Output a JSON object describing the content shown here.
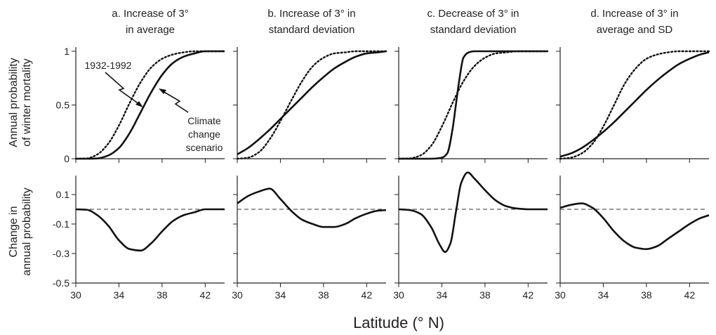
{
  "figure": {
    "xlabel": "Latitude (° N)",
    "top_row_ylabel_line1": "Annual probability",
    "top_row_ylabel_line2": "of winter mortality",
    "bottom_row_ylabel_line1": "Change in",
    "bottom_row_ylabel_line2": "annual probability"
  },
  "annotations": {
    "baseline_label": "1932-1992",
    "scenario_label_line1": "Climate",
    "scenario_label_line2": "change",
    "scenario_label_line3": "scenario"
  },
  "chart_data": [
    {
      "type": "line",
      "panel": "a-top",
      "title_line1": "a. Increase of 3°",
      "title_line2": "in average",
      "xlim": [
        30,
        43.8
      ],
      "ylim": [
        0,
        1
      ],
      "x_ticks": [
        30,
        34,
        38,
        42
      ],
      "y_ticks": [
        0,
        0.5,
        1
      ],
      "y_tick_labels": [
        "0",
        "0.5",
        "1"
      ],
      "series": [
        {
          "style": "dotted",
          "x": [
            30,
            31,
            32,
            33,
            34,
            35,
            36,
            37,
            38,
            39,
            40,
            41,
            42,
            43,
            43.8
          ],
          "y": [
            0,
            0.003,
            0.04,
            0.14,
            0.31,
            0.52,
            0.71,
            0.85,
            0.93,
            0.97,
            0.99,
            1,
            1,
            1,
            1
          ]
        },
        {
          "style": "solid",
          "x": [
            30,
            31,
            32,
            33,
            34,
            35,
            36,
            37,
            38,
            39,
            40,
            41,
            42,
            43,
            43.8
          ],
          "y": [
            0,
            0,
            0.003,
            0.03,
            0.1,
            0.24,
            0.43,
            0.62,
            0.78,
            0.89,
            0.95,
            0.98,
            1,
            1,
            1
          ]
        }
      ]
    },
    {
      "type": "line",
      "panel": "b-top",
      "title_line1": "b. Increase of 3° in",
      "title_line2": "standard deviation",
      "xlim": [
        30,
        43.8
      ],
      "ylim": [
        0,
        1
      ],
      "x_ticks": [
        30,
        34,
        38,
        42
      ],
      "y_ticks": [
        0,
        0.5,
        1
      ],
      "series": [
        {
          "style": "dotted",
          "x": [
            30,
            31,
            32,
            33,
            34,
            35,
            36,
            37,
            38,
            39,
            40,
            41,
            42,
            43,
            43.8
          ],
          "y": [
            0,
            0.01,
            0.06,
            0.18,
            0.35,
            0.54,
            0.72,
            0.86,
            0.94,
            0.98,
            0.99,
            1,
            1,
            1,
            1
          ]
        },
        {
          "style": "solid",
          "x": [
            30,
            31,
            32,
            33,
            34,
            35,
            36,
            37,
            38,
            39,
            40,
            41,
            42,
            43,
            43.8
          ],
          "y": [
            0.04,
            0.1,
            0.18,
            0.27,
            0.37,
            0.47,
            0.57,
            0.67,
            0.76,
            0.84,
            0.9,
            0.95,
            0.98,
            0.99,
            1
          ]
        }
      ]
    },
    {
      "type": "line",
      "panel": "c-top",
      "title_line1": "c. Decrease of 3° in",
      "title_line2": "standard deviation",
      "xlim": [
        30,
        43.8
      ],
      "ylim": [
        0,
        1
      ],
      "x_ticks": [
        30,
        34,
        38,
        42
      ],
      "y_ticks": [
        0,
        0.5,
        1
      ],
      "series": [
        {
          "style": "dotted",
          "x": [
            30,
            31,
            32,
            33,
            34,
            35,
            36,
            37,
            38,
            39,
            40,
            41,
            42,
            43,
            43.8
          ],
          "y": [
            0,
            0.003,
            0.03,
            0.12,
            0.3,
            0.52,
            0.72,
            0.86,
            0.94,
            0.98,
            0.99,
            1,
            1,
            1,
            1
          ]
        },
        {
          "style": "solid",
          "x": [
            30,
            33,
            34,
            34.5,
            35,
            35.3,
            35.6,
            36,
            36.5,
            37,
            38,
            40,
            42,
            43.8
          ],
          "y": [
            0,
            0,
            0.01,
            0.05,
            0.28,
            0.5,
            0.72,
            0.94,
            0.99,
            1,
            1,
            1,
            1,
            1
          ]
        }
      ]
    },
    {
      "type": "line",
      "panel": "d-top",
      "title_line1": "d. Increase of 3° in",
      "title_line2": "average and SD",
      "xlim": [
        30,
        43.8
      ],
      "ylim": [
        0,
        1
      ],
      "x_ticks": [
        30,
        34,
        38,
        42
      ],
      "y_ticks": [
        0,
        0.5,
        1
      ],
      "series": [
        {
          "style": "dotted",
          "x": [
            30,
            31,
            32,
            33,
            34,
            35,
            36,
            37,
            38,
            39,
            40,
            41,
            42,
            43,
            43.8
          ],
          "y": [
            0,
            0.01,
            0.05,
            0.14,
            0.3,
            0.5,
            0.7,
            0.84,
            0.93,
            0.97,
            0.99,
            1,
            1,
            1,
            1
          ]
        },
        {
          "style": "solid",
          "x": [
            30,
            31,
            32,
            33,
            34,
            35,
            36,
            37,
            38,
            39,
            40,
            41,
            42,
            43,
            43.8
          ],
          "y": [
            0.02,
            0.05,
            0.1,
            0.17,
            0.25,
            0.34,
            0.44,
            0.54,
            0.64,
            0.73,
            0.81,
            0.88,
            0.93,
            0.97,
            0.99
          ]
        }
      ]
    },
    {
      "type": "line",
      "panel": "a-bottom",
      "xlim": [
        30,
        43.8
      ],
      "ylim": [
        -0.5,
        0.2
      ],
      "x_ticks": [
        30,
        34,
        38,
        42
      ],
      "y_ticks": [
        0.1,
        -0.1,
        -0.3,
        -0.5
      ],
      "y_tick_labels": [
        "0.1",
        "-0.1",
        "-0.3",
        "-0.5"
      ],
      "series": [
        {
          "style": "solid",
          "x": [
            30,
            31,
            32,
            33,
            34,
            35,
            36,
            37,
            38,
            39,
            40,
            41,
            42,
            43,
            43.8
          ],
          "y": [
            0,
            -0.003,
            -0.04,
            -0.11,
            -0.21,
            -0.27,
            -0.28,
            -0.23,
            -0.15,
            -0.08,
            -0.04,
            -0.02,
            0,
            0,
            0
          ]
        }
      ]
    },
    {
      "type": "line",
      "panel": "b-bottom",
      "xlim": [
        30,
        43.8
      ],
      "ylim": [
        -0.5,
        0.2
      ],
      "x_ticks": [
        30,
        34,
        38,
        42
      ],
      "y_ticks": [
        0.1,
        -0.1,
        -0.3,
        -0.5
      ],
      "series": [
        {
          "style": "solid",
          "x": [
            30,
            31,
            32,
            33,
            34,
            35,
            36,
            37,
            38,
            39,
            40,
            41,
            42,
            43,
            43.8
          ],
          "y": [
            0.04,
            0.09,
            0.12,
            0.14,
            0.07,
            -0.01,
            -0.07,
            -0.1,
            -0.12,
            -0.12,
            -0.1,
            -0.06,
            -0.03,
            -0.01,
            -0.005
          ]
        }
      ]
    },
    {
      "type": "line",
      "panel": "c-bottom",
      "xlim": [
        30,
        43.8
      ],
      "ylim": [
        -0.5,
        0.2
      ],
      "x_ticks": [
        30,
        34,
        38,
        42
      ],
      "y_ticks": [
        0.1,
        -0.1,
        -0.3,
        -0.5
      ],
      "series": [
        {
          "style": "solid",
          "x": [
            30,
            31,
            32,
            33,
            33.8,
            34.3,
            34.8,
            35.3,
            35.8,
            36.4,
            37,
            38,
            39,
            40,
            41,
            42,
            43.8
          ],
          "y": [
            0,
            -0.005,
            -0.03,
            -0.12,
            -0.24,
            -0.29,
            -0.23,
            -0.02,
            0.18,
            0.25,
            0.21,
            0.13,
            0.06,
            0.02,
            0.005,
            0,
            0
          ]
        }
      ]
    },
    {
      "type": "line",
      "panel": "d-bottom",
      "xlim": [
        30,
        43.8
      ],
      "ylim": [
        -0.5,
        0.2
      ],
      "x_ticks": [
        30,
        34,
        38,
        42
      ],
      "y_ticks": [
        0.1,
        -0.1,
        -0.3,
        -0.5
      ],
      "series": [
        {
          "style": "solid",
          "x": [
            30,
            31,
            32,
            33,
            34,
            35,
            36,
            37,
            38,
            39,
            40,
            41,
            42,
            43,
            43.8
          ],
          "y": [
            0.01,
            0.03,
            0.04,
            0.01,
            -0.06,
            -0.15,
            -0.22,
            -0.26,
            -0.27,
            -0.25,
            -0.2,
            -0.15,
            -0.1,
            -0.06,
            -0.04
          ]
        }
      ]
    }
  ]
}
